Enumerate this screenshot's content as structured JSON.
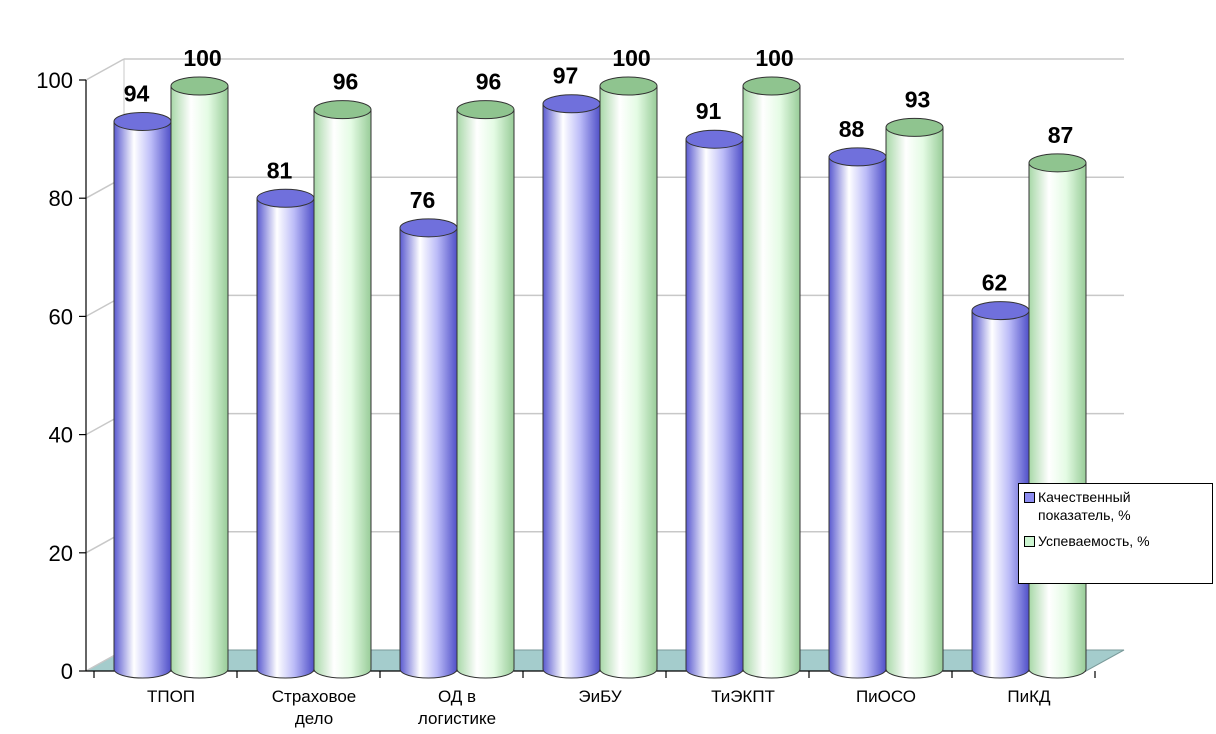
{
  "chart_data": {
    "type": "bar",
    "style": "3d-cylinder",
    "categories": [
      "ТПОП",
      "Страховое дело",
      "ОД в логистике",
      "ЭиБУ",
      "ТиЭКПТ",
      "ПиОСО",
      "ПиКД"
    ],
    "category_lines": [
      [
        "ТПОП"
      ],
      [
        "Страховое",
        "дело"
      ],
      [
        "ОД в",
        "логистике"
      ],
      [
        "ЭиБУ"
      ],
      [
        "ТиЭКПТ"
      ],
      [
        "ПиОСО"
      ],
      [
        "ПиКД"
      ]
    ],
    "series": [
      {
        "name": "Качественный показатель, %",
        "values": [
          94,
          81,
          76,
          97,
          91,
          88,
          62
        ],
        "color": "#8c8cf0"
      },
      {
        "name": "Успеваемость, %",
        "values": [
          100,
          96,
          96,
          100,
          100,
          93,
          87
        ],
        "color": "#ccf5d0"
      }
    ],
    "ylim": [
      0,
      100
    ],
    "yticks": [
      0,
      20,
      40,
      60,
      80,
      100
    ],
    "grid": true,
    "legend": "right",
    "floor_color": "#a4cccc"
  },
  "legend": {
    "items": [
      {
        "lines": [
          "Качественный",
          "показатель, %"
        ],
        "color": "#8c8cf0"
      },
      {
        "lines": [
          "Успеваемость, %"
        ],
        "color": "#ccf5d0"
      }
    ]
  }
}
